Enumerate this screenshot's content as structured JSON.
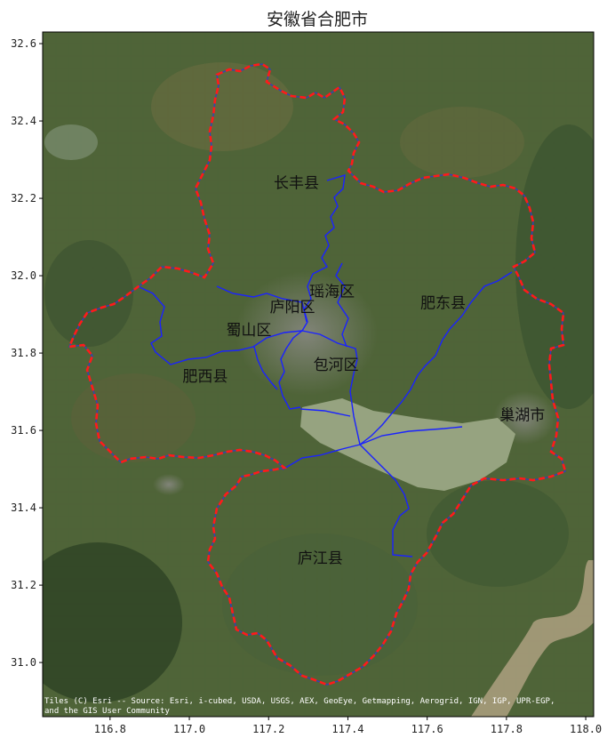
{
  "title": "安徽省合肥市",
  "map": {
    "lon_range": [
      116.63,
      118.02
    ],
    "lat_range": [
      30.86,
      32.63
    ],
    "x_ticks": [
      "116.8",
      "117.0",
      "117.2",
      "117.4",
      "117.6",
      "117.8",
      "118.0"
    ],
    "y_ticks": [
      "31.0",
      "31.2",
      "31.4",
      "31.6",
      "31.8",
      "32.0",
      "32.2",
      "32.4",
      "32.6"
    ],
    "basemap": "satellite imagery",
    "outer_boundary_color": "#ff0000",
    "outer_boundary_style": "dashed",
    "district_boundary_color": "#0000ff",
    "lake_color": "#9aa784"
  },
  "districts": [
    {
      "name": "长丰县",
      "lon": 117.27,
      "lat": 32.24
    },
    {
      "name": "瑶海区",
      "lon": 117.36,
      "lat": 31.96
    },
    {
      "name": "庐阳区",
      "lon": 117.26,
      "lat": 31.92
    },
    {
      "name": "肥东县",
      "lon": 117.64,
      "lat": 31.93
    },
    {
      "name": "蜀山区",
      "lon": 117.15,
      "lat": 31.86
    },
    {
      "name": "包河区",
      "lon": 117.37,
      "lat": 31.77
    },
    {
      "name": "肥西县",
      "lon": 117.04,
      "lat": 31.74
    },
    {
      "name": "巢湖市",
      "lon": 117.84,
      "lat": 31.64
    },
    {
      "name": "庐江县",
      "lon": 117.33,
      "lat": 31.27
    }
  ],
  "attribution": {
    "line1": "Tiles (C) Esri -- Source: Esri, i-cubed, USDA, USGS, AEX, GeoEye, Getmapping, Aerogrid, IGN, IGP, UPR-EGP,",
    "line2": "and the GIS User Community"
  }
}
